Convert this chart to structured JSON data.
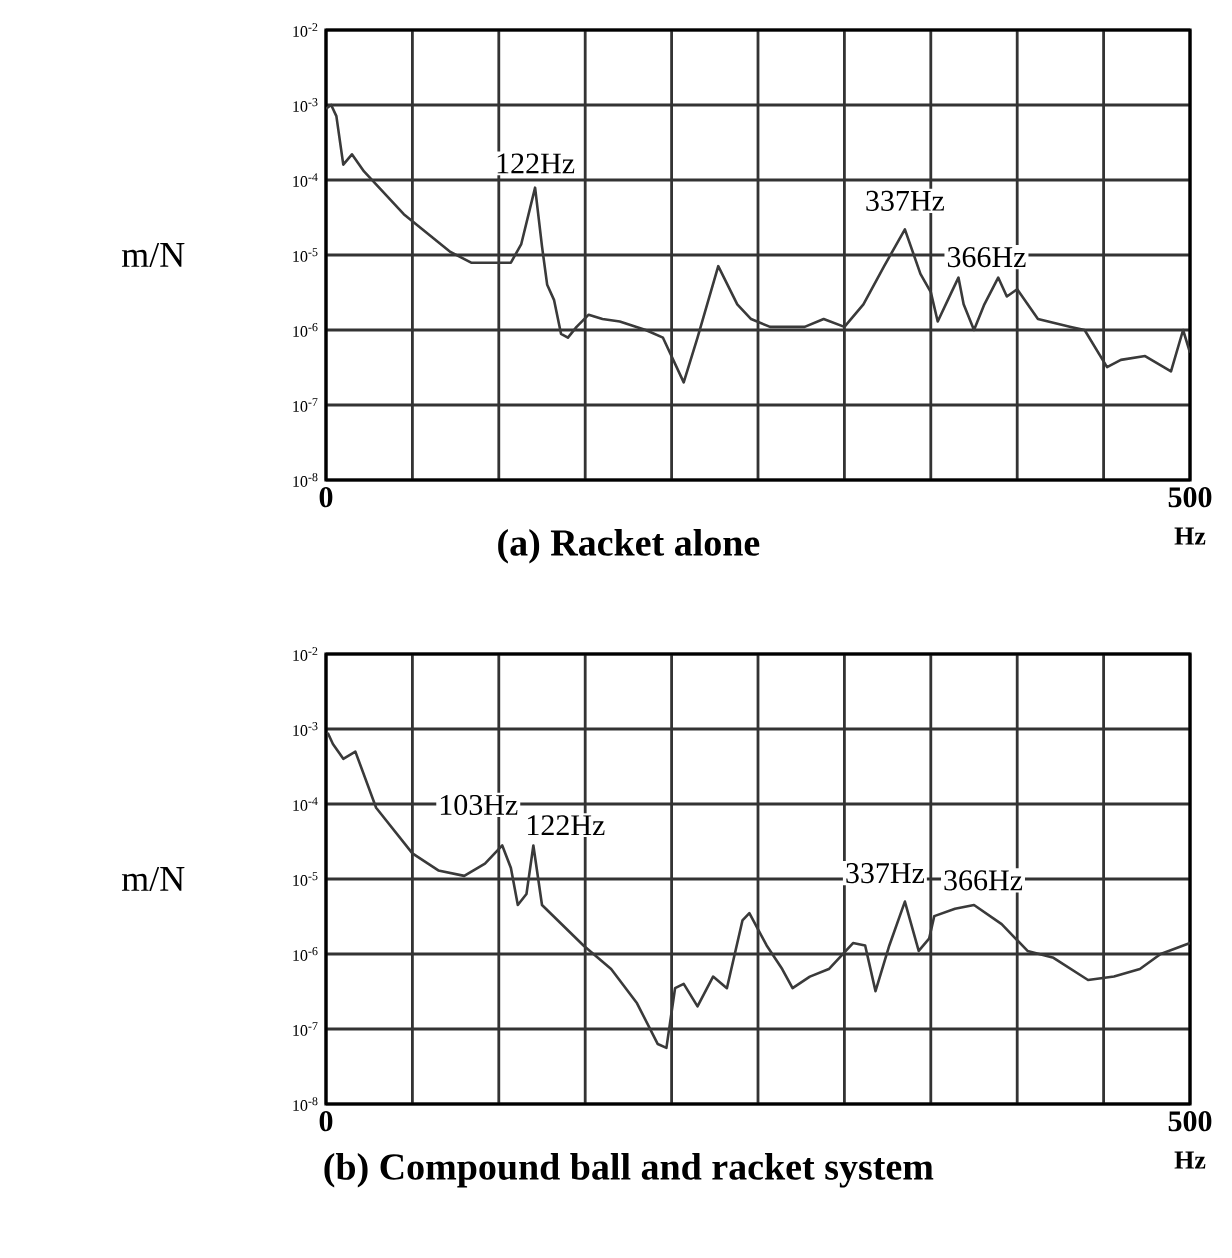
{
  "chart_data": [
    {
      "type": "line",
      "title": "(a) Racket alone",
      "xlabel": "Hz",
      "ylabel": "m/N",
      "log": "y",
      "grid": true,
      "color": "#3a3a3a",
      "xlim": [
        0,
        500
      ],
      "ylim": [
        1e-08,
        0.01
      ],
      "xticks": [
        0,
        {
          "value": 50,
          "label": null
        },
        {
          "value": 100,
          "label": null
        },
        {
          "value": 150,
          "label": null
        },
        {
          "value": 200,
          "label": null
        },
        {
          "value": 250,
          "label": null
        },
        {
          "value": 300,
          "label": null
        },
        {
          "value": 350,
          "label": null
        },
        {
          "value": 400,
          "label": null
        },
        {
          "value": 450,
          "label": null
        },
        500
      ],
      "yticks": [
        {
          "value": 1e-08,
          "label": "10$^{-8}$"
        },
        {
          "value": 1e-07,
          "label": "10$^{-7}$"
        },
        {
          "value": 1e-06,
          "label": "10$^{-6}$"
        },
        {
          "value": 1e-05,
          "label": "10$^{-5}$"
        },
        {
          "value": 0.0001,
          "label": "10$^{-4}$"
        },
        {
          "value": 0.001,
          "label": "10$^{-3}$"
        },
        {
          "value": 0.01,
          "label": "10$^{-2}$"
        }
      ],
      "x": [
        0,
        3,
        6,
        10,
        15,
        22,
        45,
        72,
        84,
        107,
        113,
        121,
        125,
        128,
        132,
        136,
        140,
        145,
        152,
        160,
        170,
        185,
        195,
        207,
        215,
        227,
        238,
        246,
        257,
        277,
        288,
        300,
        311,
        323,
        335,
        344,
        350,
        354,
        362,
        366,
        369,
        375,
        381,
        389,
        394,
        400,
        412,
        431,
        439,
        452,
        460,
        474,
        489,
        496,
        500
      ],
      "values": [
        0.00089,
        0.001,
        0.00071,
        0.00016,
        0.00022,
        0.00013,
        3.5e-05,
        1.1e-05,
        7.9e-06,
        7.9e-06,
        1.4e-05,
        7.9e-05,
        1.3e-05,
        4e-06,
        2.5e-06,
        8.9e-07,
        7.9e-07,
        1.1e-06,
        1.6e-06,
        1.4e-06,
        1.3e-06,
        1e-06,
        7.9e-07,
        2e-07,
        7.9e-07,
        7.1e-06,
        2.2e-06,
        1.4e-06,
        1.1e-06,
        1.1e-06,
        1.4e-06,
        1.1e-06,
        2.2e-06,
        7.1e-06,
        2.2e-05,
        5.6e-06,
        3.2e-06,
        1.3e-06,
        3.2e-06,
        5e-06,
        2.2e-06,
        1e-06,
        2.2e-06,
        5e-06,
        2.8e-06,
        3.5e-06,
        1.4e-06,
        1.1e-06,
        1e-06,
        3.2e-07,
        4e-07,
        4.5e-07,
        2.8e-07,
        1e-06,
        5e-07
      ],
      "annotations": [
        {
          "text": "122Hz",
          "x": 121,
          "y": 7.9e-05
        },
        {
          "text": "337Hz",
          "x": 335,
          "y": 2.2e-05
        },
        {
          "text": "366Hz",
          "x": 366,
          "y": 5e-06
        }
      ]
    },
    {
      "type": "line",
      "title": "(b) Compound ball and racket system",
      "xlabel": "Hz",
      "ylabel": "m/N",
      "log": "y",
      "grid": true,
      "color": "#3a3a3a",
      "xlim": [
        0,
        500
      ],
      "ylim": [
        1e-08,
        0.01
      ],
      "xticks": [
        0,
        {
          "value": 50,
          "label": null
        },
        {
          "value": 100,
          "label": null
        },
        {
          "value": 150,
          "label": null
        },
        {
          "value": 200,
          "label": null
        },
        {
          "value": 250,
          "label": null
        },
        {
          "value": 300,
          "label": null
        },
        {
          "value": 350,
          "label": null
        },
        {
          "value": 400,
          "label": null
        },
        {
          "value": 450,
          "label": null
        },
        500
      ],
      "yticks": [
        {
          "value": 1e-08,
          "label": "10$^{-8}$"
        },
        {
          "value": 1e-07,
          "label": "10$^{-7}$"
        },
        {
          "value": 1e-06,
          "label": "10$^{-6}$"
        },
        {
          "value": 1e-05,
          "label": "10$^{-5}$"
        },
        {
          "value": 0.0001,
          "label": "10$^{-4}$"
        },
        {
          "value": 0.001,
          "label": "10$^{-3}$"
        },
        {
          "value": 0.01,
          "label": "10$^{-2}$"
        }
      ],
      "x": [
        1,
        4,
        10,
        17,
        29,
        50,
        65,
        80,
        92,
        102,
        107,
        111,
        116,
        120,
        125,
        149,
        165,
        180,
        192,
        197,
        202,
        207,
        215,
        224,
        232,
        241,
        245,
        255,
        264,
        270,
        280,
        291,
        305,
        312,
        318,
        326,
        335,
        343,
        349,
        352,
        364,
        375,
        391,
        406,
        421,
        441,
        456,
        471,
        483,
        500
      ],
      "values": [
        0.00089,
        0.00063,
        0.0004,
        0.0005,
        8.9e-05,
        2.2e-05,
        1.3e-05,
        1.1e-05,
        1.6e-05,
        2.8e-05,
        1.4e-05,
        4.5e-06,
        6.3e-06,
        2.8e-05,
        4.5e-06,
        1.3e-06,
        6.3e-07,
        2.2e-07,
        6.3e-08,
        5.6e-08,
        3.5e-07,
        4e-07,
        2e-07,
        5e-07,
        3.5e-07,
        2.8e-06,
        3.5e-06,
        1.3e-06,
        6.3e-07,
        3.5e-07,
        5e-07,
        6.3e-07,
        1.4e-06,
        1.3e-06,
        3.2e-07,
        1.3e-06,
        5e-06,
        1.1e-06,
        1.6e-06,
        3.2e-06,
        4e-06,
        4.5e-06,
        2.5e-06,
        1.1e-06,
        8.9e-07,
        4.5e-07,
        5e-07,
        6.3e-07,
        1e-06,
        1.4e-06
      ],
      "annotations": [
        {
          "text": "103Hz",
          "x": 102,
          "y": 2.8e-05
        },
        {
          "text": "122Hz",
          "x": 120,
          "y": 2.8e-05
        },
        {
          "text": "337Hz",
          "x": 335,
          "y": 5e-06
        },
        {
          "text": "366Hz",
          "x": 364,
          "y": 4e-06
        }
      ]
    }
  ]
}
